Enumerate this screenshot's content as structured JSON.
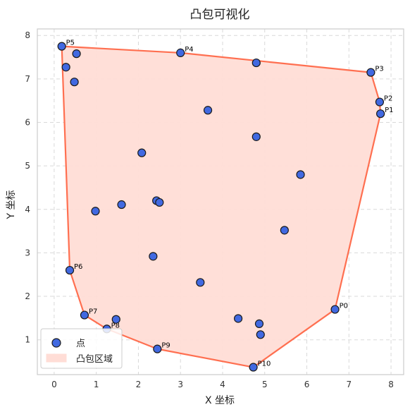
{
  "chart_data": {
    "type": "scatter",
    "title": "凸包可视化",
    "xlabel": "X 坐标",
    "ylabel": "Y 坐标",
    "xlim": [
      -0.4,
      8.3
    ],
    "ylim": [
      0.2,
      8.15
    ],
    "xticks": [
      0,
      1,
      2,
      3,
      4,
      5,
      6,
      7,
      8
    ],
    "yticks": [
      1,
      2,
      3,
      4,
      5,
      6,
      7,
      8
    ],
    "grid": true,
    "legend_position": "bottom-left",
    "colors": {
      "point_fill": "#4169E1",
      "point_edge": "#1a1a1a",
      "hull_line": "#FF6F50",
      "hull_fill": "#FFDDD6"
    },
    "legend": [
      {
        "label": "点",
        "marker": "point"
      },
      {
        "label": "凸包区域",
        "marker": "area"
      }
    ],
    "points": [
      {
        "x": 0.18,
        "y": 7.75
      },
      {
        "x": 0.53,
        "y": 7.58
      },
      {
        "x": 0.28,
        "y": 7.27
      },
      {
        "x": 0.48,
        "y": 6.93
      },
      {
        "x": 3.0,
        "y": 7.6
      },
      {
        "x": 4.8,
        "y": 7.37
      },
      {
        "x": 7.52,
        "y": 7.15
      },
      {
        "x": 7.73,
        "y": 6.47
      },
      {
        "x": 7.75,
        "y": 6.2
      },
      {
        "x": 3.65,
        "y": 6.28
      },
      {
        "x": 4.8,
        "y": 5.67
      },
      {
        "x": 2.08,
        "y": 5.3
      },
      {
        "x": 5.85,
        "y": 4.8
      },
      {
        "x": 2.43,
        "y": 4.2
      },
      {
        "x": 2.5,
        "y": 4.16
      },
      {
        "x": 1.6,
        "y": 4.11
      },
      {
        "x": 0.98,
        "y": 3.96
      },
      {
        "x": 5.47,
        "y": 3.52
      },
      {
        "x": 2.35,
        "y": 2.92
      },
      {
        "x": 0.37,
        "y": 2.6
      },
      {
        "x": 3.47,
        "y": 2.32
      },
      {
        "x": 6.67,
        "y": 1.7
      },
      {
        "x": 0.72,
        "y": 1.57
      },
      {
        "x": 1.47,
        "y": 1.47
      },
      {
        "x": 4.37,
        "y": 1.49
      },
      {
        "x": 4.87,
        "y": 1.37
      },
      {
        "x": 1.25,
        "y": 1.25
      },
      {
        "x": 4.9,
        "y": 1.12
      },
      {
        "x": 2.45,
        "y": 0.79
      },
      {
        "x": 4.73,
        "y": 0.37
      }
    ],
    "hull": [
      {
        "label": "P0",
        "x": 6.67,
        "y": 1.7
      },
      {
        "label": "P1",
        "x": 7.75,
        "y": 6.2
      },
      {
        "label": "P2",
        "x": 7.73,
        "y": 6.47
      },
      {
        "label": "P3",
        "x": 7.52,
        "y": 7.15
      },
      {
        "label": "P4",
        "x": 3.0,
        "y": 7.6
      },
      {
        "label": "P5",
        "x": 0.18,
        "y": 7.75
      },
      {
        "label": "P6",
        "x": 0.37,
        "y": 2.6
      },
      {
        "label": "P7",
        "x": 0.72,
        "y": 1.57
      },
      {
        "label": "P8",
        "x": 1.25,
        "y": 1.25
      },
      {
        "label": "P9",
        "x": 2.45,
        "y": 0.79
      },
      {
        "label": "P10",
        "x": 4.73,
        "y": 0.37
      }
    ]
  }
}
